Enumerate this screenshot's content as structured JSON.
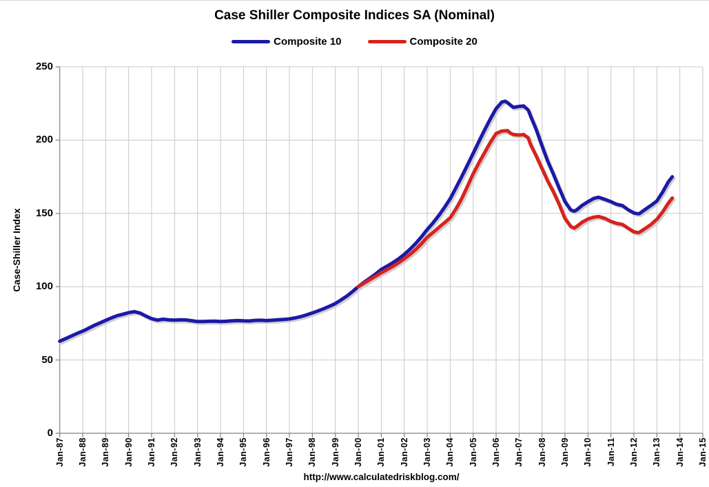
{
  "title": "Case Shiller Composite Indices SA (Nominal)",
  "footer_url": "http://www.calculatedriskblog.com/",
  "colors": {
    "composite10": "#1C1AA5",
    "composite20": "#D7231D",
    "grid": "#C8C8C8",
    "axis": "#808080",
    "shadow": "#CFCFCF",
    "text": "#000000",
    "background": "#FFFFFF"
  },
  "chart_data": {
    "type": "line",
    "title": "Case Shiller Composite Indices SA (Nominal)",
    "xlabel": "",
    "ylabel": "Case-Shiller Index",
    "ylim": [
      0,
      250
    ],
    "xlim_years": [
      1987,
      2015
    ],
    "grid": true,
    "legend_position": "top-center",
    "yticks": [
      0,
      50,
      100,
      150,
      200,
      250
    ],
    "xticks": [
      "Jan-87",
      "Jan-88",
      "Jan-89",
      "Jan-90",
      "Jan-91",
      "Jan-92",
      "Jan-93",
      "Jan-94",
      "Jan-95",
      "Jan-96",
      "Jan-97",
      "Jan-98",
      "Jan-99",
      "Jan-00",
      "Jan-01",
      "Jan-02",
      "Jan-03",
      "Jan-04",
      "Jan-05",
      "Jan-06",
      "Jan-07",
      "Jan-08",
      "Jan-09",
      "Jan-10",
      "Jan-11",
      "Jan-12",
      "Jan-13",
      "Jan-14",
      "Jan-15"
    ],
    "series": [
      {
        "name": "Composite 10",
        "color": "#1C1AA5",
        "points": [
          [
            1987.0,
            62.8
          ],
          [
            1987.25,
            64.5
          ],
          [
            1987.5,
            66.3
          ],
          [
            1987.75,
            68.1
          ],
          [
            1988.0,
            69.7
          ],
          [
            1988.25,
            71.6
          ],
          [
            1988.5,
            73.6
          ],
          [
            1988.75,
            75.3
          ],
          [
            1989.0,
            77.0
          ],
          [
            1989.25,
            78.7
          ],
          [
            1989.5,
            80.2
          ],
          [
            1989.75,
            81.2
          ],
          [
            1990.0,
            82.3
          ],
          [
            1990.25,
            83.0
          ],
          [
            1990.5,
            82.0
          ],
          [
            1990.75,
            80.0
          ],
          [
            1991.0,
            78.2
          ],
          [
            1991.25,
            77.2
          ],
          [
            1991.5,
            77.8
          ],
          [
            1991.75,
            77.4
          ],
          [
            1992.0,
            77.2
          ],
          [
            1992.25,
            77.4
          ],
          [
            1992.5,
            77.3
          ],
          [
            1992.75,
            76.8
          ],
          [
            1993.0,
            76.2
          ],
          [
            1993.25,
            76.2
          ],
          [
            1993.5,
            76.4
          ],
          [
            1993.75,
            76.5
          ],
          [
            1994.0,
            76.2
          ],
          [
            1994.25,
            76.4
          ],
          [
            1994.5,
            76.7
          ],
          [
            1994.75,
            76.9
          ],
          [
            1995.0,
            76.7
          ],
          [
            1995.25,
            76.6
          ],
          [
            1995.5,
            77.0
          ],
          [
            1995.75,
            77.1
          ],
          [
            1996.0,
            76.9
          ],
          [
            1996.25,
            77.1
          ],
          [
            1996.5,
            77.4
          ],
          [
            1996.75,
            77.7
          ],
          [
            1997.0,
            78.0
          ],
          [
            1997.25,
            78.7
          ],
          [
            1997.5,
            79.6
          ],
          [
            1997.75,
            80.8
          ],
          [
            1998.0,
            82.1
          ],
          [
            1998.25,
            83.5
          ],
          [
            1998.5,
            85.0
          ],
          [
            1998.75,
            86.7
          ],
          [
            1999.0,
            88.5
          ],
          [
            1999.25,
            91.0
          ],
          [
            1999.5,
            93.6
          ],
          [
            1999.75,
            96.7
          ],
          [
            2000.0,
            100.0
          ],
          [
            2000.25,
            103.0
          ],
          [
            2000.5,
            105.8
          ],
          [
            2000.75,
            108.6
          ],
          [
            2001.0,
            111.8
          ],
          [
            2001.25,
            114.0
          ],
          [
            2001.5,
            116.3
          ],
          [
            2001.75,
            119.0
          ],
          [
            2002.0,
            122.0
          ],
          [
            2002.25,
            125.5
          ],
          [
            2002.5,
            129.5
          ],
          [
            2002.75,
            134.0
          ],
          [
            2003.0,
            139.0
          ],
          [
            2003.25,
            143.5
          ],
          [
            2003.5,
            148.5
          ],
          [
            2003.75,
            154.0
          ],
          [
            2004.0,
            160.0
          ],
          [
            2004.25,
            167.5
          ],
          [
            2004.5,
            175.0
          ],
          [
            2004.75,
            183.0
          ],
          [
            2005.0,
            191.0
          ],
          [
            2005.25,
            199.0
          ],
          [
            2005.5,
            207.0
          ],
          [
            2005.75,
            214.5
          ],
          [
            2006.0,
            221.5
          ],
          [
            2006.25,
            226.0
          ],
          [
            2006.4,
            226.5
          ],
          [
            2006.5,
            225.5
          ],
          [
            2006.75,
            222.3
          ],
          [
            2007.0,
            223.0
          ],
          [
            2007.2,
            223.3
          ],
          [
            2007.4,
            220.5
          ],
          [
            2007.5,
            216.5
          ],
          [
            2007.75,
            207.0
          ],
          [
            2008.0,
            196.0
          ],
          [
            2008.25,
            185.5
          ],
          [
            2008.5,
            176.5
          ],
          [
            2008.75,
            167.0
          ],
          [
            2009.0,
            158.0
          ],
          [
            2009.25,
            152.3
          ],
          [
            2009.4,
            151.5
          ],
          [
            2009.5,
            152.3
          ],
          [
            2009.75,
            155.5
          ],
          [
            2010.0,
            158.0
          ],
          [
            2010.25,
            160.2
          ],
          [
            2010.45,
            161.0
          ],
          [
            2010.5,
            160.8
          ],
          [
            2010.75,
            159.5
          ],
          [
            2011.0,
            158.0
          ],
          [
            2011.25,
            156.2
          ],
          [
            2011.5,
            155.3
          ],
          [
            2011.75,
            152.5
          ],
          [
            2012.0,
            150.3
          ],
          [
            2012.2,
            149.7
          ],
          [
            2012.25,
            150.0
          ],
          [
            2012.5,
            152.8
          ],
          [
            2012.75,
            155.5
          ],
          [
            2013.0,
            158.5
          ],
          [
            2013.25,
            164.5
          ],
          [
            2013.5,
            171.5
          ],
          [
            2013.67,
            175.0
          ]
        ]
      },
      {
        "name": "Composite 20",
        "color": "#D7231D",
        "points": [
          [
            2000.0,
            100.0
          ],
          [
            2000.25,
            102.4
          ],
          [
            2000.5,
            104.8
          ],
          [
            2000.75,
            107.1
          ],
          [
            2001.0,
            109.5
          ],
          [
            2001.25,
            111.6
          ],
          [
            2001.5,
            113.8
          ],
          [
            2001.75,
            116.3
          ],
          [
            2002.0,
            119.0
          ],
          [
            2002.25,
            122.0
          ],
          [
            2002.5,
            125.4
          ],
          [
            2002.75,
            129.3
          ],
          [
            2003.0,
            133.7
          ],
          [
            2003.25,
            137.0
          ],
          [
            2003.5,
            140.3
          ],
          [
            2003.75,
            143.6
          ],
          [
            2004.0,
            147.0
          ],
          [
            2004.25,
            153.0
          ],
          [
            2004.5,
            160.0
          ],
          [
            2004.75,
            168.5
          ],
          [
            2005.0,
            177.0
          ],
          [
            2005.25,
            184.5
          ],
          [
            2005.5,
            191.5
          ],
          [
            2005.75,
            198.5
          ],
          [
            2006.0,
            204.5
          ],
          [
            2006.25,
            206.2
          ],
          [
            2006.5,
            206.5
          ],
          [
            2006.6,
            205.0
          ],
          [
            2006.75,
            203.8
          ],
          [
            2007.0,
            203.5
          ],
          [
            2007.2,
            203.8
          ],
          [
            2007.4,
            201.5
          ],
          [
            2007.5,
            197.0
          ],
          [
            2007.75,
            189.0
          ],
          [
            2008.0,
            180.5
          ],
          [
            2008.25,
            172.0
          ],
          [
            2008.5,
            164.5
          ],
          [
            2008.75,
            156.0
          ],
          [
            2009.0,
            146.5
          ],
          [
            2009.25,
            141.0
          ],
          [
            2009.4,
            140.0
          ],
          [
            2009.5,
            141.0
          ],
          [
            2009.75,
            144.0
          ],
          [
            2010.0,
            146.2
          ],
          [
            2010.25,
            147.4
          ],
          [
            2010.45,
            147.9
          ],
          [
            2010.5,
            147.7
          ],
          [
            2010.75,
            146.5
          ],
          [
            2011.0,
            144.5
          ],
          [
            2011.25,
            143.2
          ],
          [
            2011.5,
            142.5
          ],
          [
            2011.75,
            139.9
          ],
          [
            2012.0,
            137.4
          ],
          [
            2012.2,
            136.9
          ],
          [
            2012.25,
            137.2
          ],
          [
            2012.5,
            139.8
          ],
          [
            2012.75,
            142.5
          ],
          [
            2013.0,
            146.0
          ],
          [
            2013.25,
            151.0
          ],
          [
            2013.5,
            157.0
          ],
          [
            2013.67,
            160.5
          ]
        ]
      }
    ]
  }
}
